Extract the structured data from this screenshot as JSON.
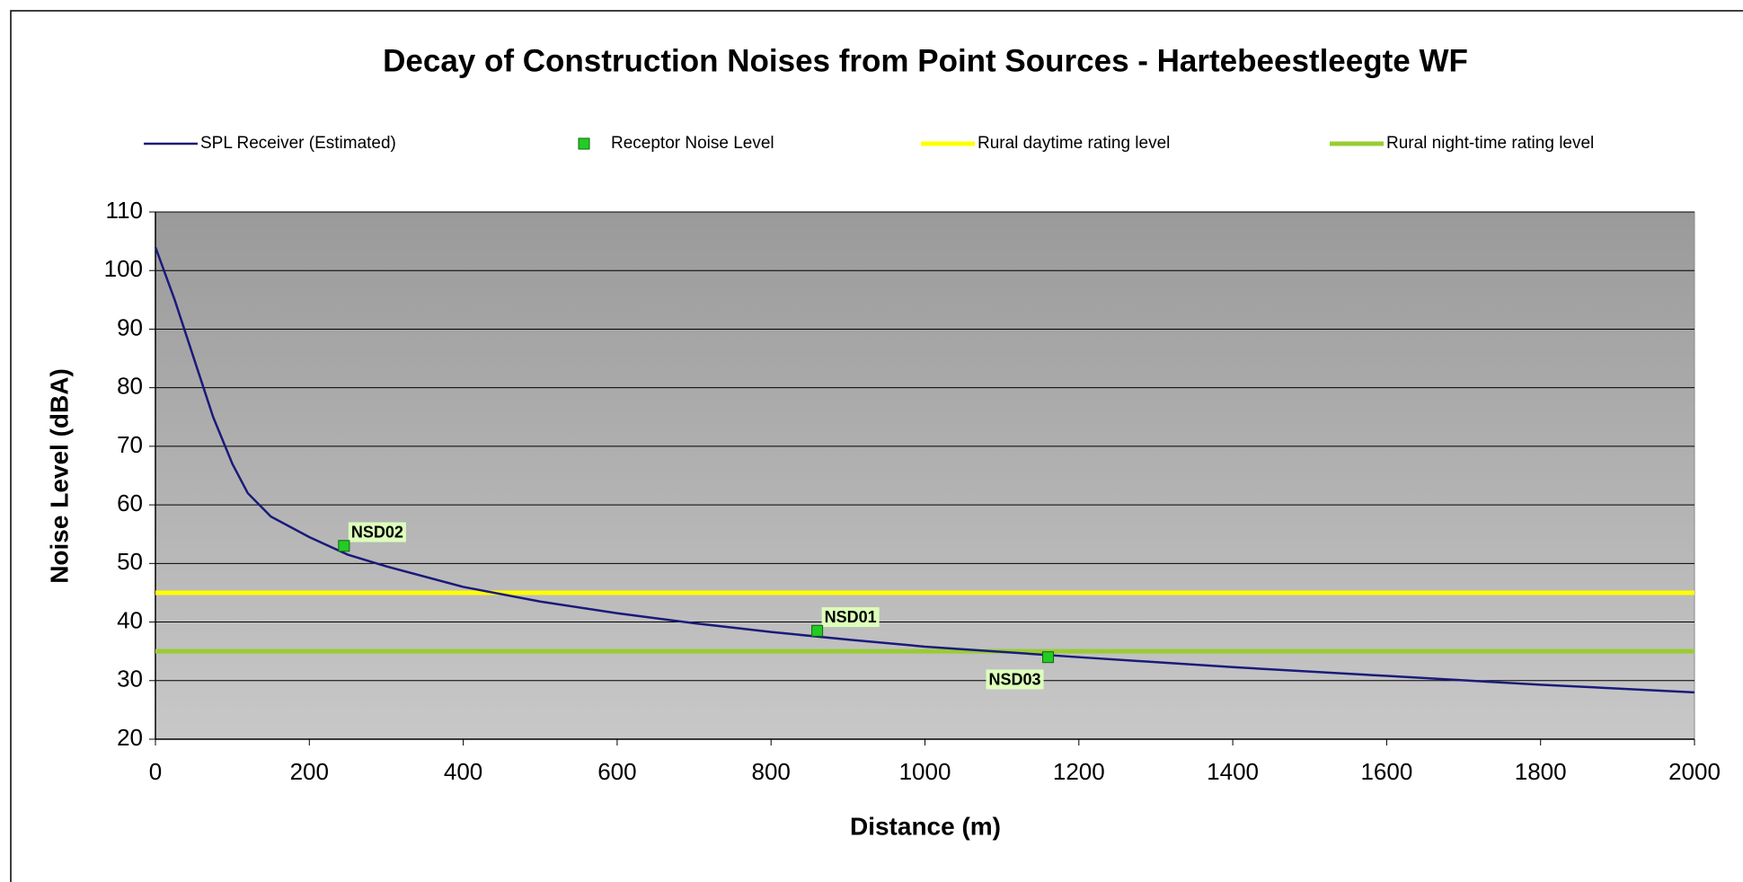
{
  "chart_data": {
    "type": "line",
    "title": "Decay of Construction Noises from Point Sources - Hartebeestleegte WF",
    "xlabel": "Distance (m)",
    "ylabel": "Noise Level (dBA)",
    "xlim": [
      0,
      2000
    ],
    "xticks": [
      0,
      200,
      400,
      600,
      800,
      1000,
      1200,
      1400,
      1600,
      1800,
      2000
    ],
    "ylim": [
      20,
      110
    ],
    "yticks": [
      20,
      30,
      40,
      50,
      60,
      70,
      80,
      90,
      100,
      110
    ],
    "grid": true,
    "legend": "top",
    "series": [
      {
        "name": "SPL Receiver (Estimated)",
        "color": "#1a1a7a",
        "kind": "line",
        "x": [
          0,
          25,
          50,
          75,
          100,
          120,
          150,
          200,
          250,
          300,
          400,
          500,
          600,
          700,
          800,
          900,
          1000,
          1200,
          1400,
          1600,
          1800,
          2000
        ],
        "values": [
          104,
          95,
          85,
          75,
          67,
          62,
          58,
          54.5,
          51.5,
          49.5,
          46,
          43.5,
          41.5,
          39.8,
          38.3,
          37,
          35.8,
          34,
          32.3,
          30.8,
          29.3,
          28
        ]
      },
      {
        "name": "Receptor Noise Level",
        "color": "#22cc22",
        "kind": "points",
        "x": [
          245,
          860,
          1160
        ],
        "values": [
          53,
          38.5,
          34
        ],
        "labels": [
          "NSD02",
          "NSD01",
          "NSD03"
        ]
      },
      {
        "name": "Rural daytime rating level",
        "color": "#ffff00",
        "kind": "line",
        "x": [
          0,
          2000
        ],
        "values": [
          45,
          45
        ]
      },
      {
        "name": "Rural night-time rating level",
        "color": "#99cc33",
        "kind": "line",
        "x": [
          0,
          2000
        ],
        "values": [
          35,
          35
        ]
      }
    ]
  }
}
